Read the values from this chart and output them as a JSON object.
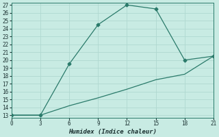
{
  "xlabel": "Humidex (Indice chaleur)",
  "background_color": "#c8ebe3",
  "grid_color": "#b0d8d0",
  "line_color": "#2a7a6a",
  "xlim": [
    0,
    21
  ],
  "ylim": [
    13,
    27
  ],
  "xticks": [
    0,
    3,
    6,
    9,
    12,
    15,
    18,
    21
  ],
  "yticks": [
    13,
    14,
    15,
    16,
    17,
    18,
    19,
    20,
    21,
    22,
    23,
    24,
    25,
    26,
    27
  ],
  "series1_x": [
    0,
    3,
    6,
    9,
    12,
    15,
    18,
    21
  ],
  "series1_y": [
    13,
    13,
    19.5,
    24.5,
    27.0,
    26.5,
    20.0,
    20.5
  ],
  "series2_x": [
    0,
    3,
    6,
    9,
    12,
    15,
    18,
    21
  ],
  "series2_y": [
    13,
    13,
    14.2,
    15.2,
    16.3,
    17.5,
    18.2,
    20.5
  ]
}
